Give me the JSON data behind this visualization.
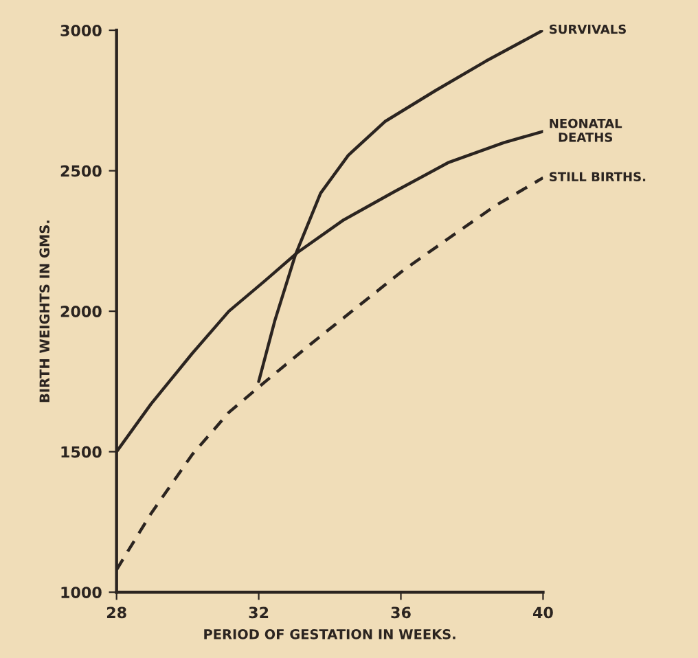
{
  "chart_data": {
    "type": "line",
    "xlabel": "PERIOD OF GESTATION IN WEEKS.",
    "ylabel": "BIRTH WEIGHTS IN GMS.",
    "xlim": [
      28,
      40
    ],
    "xticks": [
      28,
      32,
      36,
      40
    ],
    "ylim": [
      1000,
      3000
    ],
    "yticks": [
      1000,
      1500,
      2000,
      2500,
      3000
    ],
    "grid": false,
    "legend": false,
    "marker": "none",
    "series": [
      {
        "name": "SURVIVALS",
        "color": "#2b2420",
        "line_style": "solid",
        "x": [
          32.0,
          32.45,
          33.03,
          33.74,
          34.52,
          35.55,
          36.97,
          38.39,
          40
        ],
        "values": [
          1750,
          1965,
          2200,
          2420,
          2555,
          2675,
          2785,
          2890,
          3000
        ]
      },
      {
        "name": "NEONATAL\nDEATHS",
        "color": "#2b2420",
        "line_style": "solid",
        "x": [
          28,
          28.97,
          30.13,
          31.16,
          32.19,
          33.1,
          34.39,
          35.81,
          37.35,
          38.9,
          40
        ],
        "values": [
          1500,
          1670,
          1850,
          2000,
          2110,
          2210,
          2325,
          2425,
          2530,
          2600,
          2640
        ]
      },
      {
        "name": "STILL BIRTHS.",
        "color": "#2b2420",
        "line_style": "dashed",
        "x": [
          28,
          28.97,
          30.13,
          31.16,
          32.19,
          33.48,
          34.77,
          36.06,
          37.35,
          38.65,
          40
        ],
        "values": [
          1080,
          1280,
          1490,
          1640,
          1750,
          1885,
          2015,
          2145,
          2260,
          2375,
          2475
        ]
      }
    ]
  }
}
